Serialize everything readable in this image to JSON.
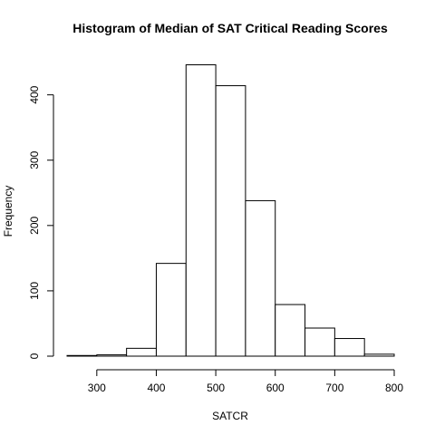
{
  "chart_data": {
    "type": "bar",
    "title": "Histogram of Median of SAT Critical Reading Scores",
    "xlabel": "SATCR",
    "ylabel": "Frequency",
    "bins": [
      {
        "from": 250,
        "to": 300,
        "count": 1
      },
      {
        "from": 300,
        "to": 350,
        "count": 2
      },
      {
        "from": 350,
        "to": 400,
        "count": 12
      },
      {
        "from": 400,
        "to": 450,
        "count": 142
      },
      {
        "from": 450,
        "to": 500,
        "count": 446
      },
      {
        "from": 500,
        "to": 550,
        "count": 414
      },
      {
        "from": 550,
        "to": 600,
        "count": 238
      },
      {
        "from": 600,
        "to": 650,
        "count": 79
      },
      {
        "from": 650,
        "to": 700,
        "count": 43
      },
      {
        "from": 700,
        "to": 750,
        "count": 27
      },
      {
        "from": 750,
        "to": 800,
        "count": 3
      }
    ],
    "xlim": [
      250,
      800
    ],
    "ylim": [
      0,
      446
    ],
    "xticks": [
      "300",
      "400",
      "500",
      "600",
      "700",
      "800"
    ],
    "yticks": [
      "0",
      "100",
      "200",
      "300",
      "400"
    ],
    "grid": false,
    "legend": "none",
    "colors": {
      "bar_fill": "#ffffff",
      "bar_stroke": "#000000"
    }
  }
}
